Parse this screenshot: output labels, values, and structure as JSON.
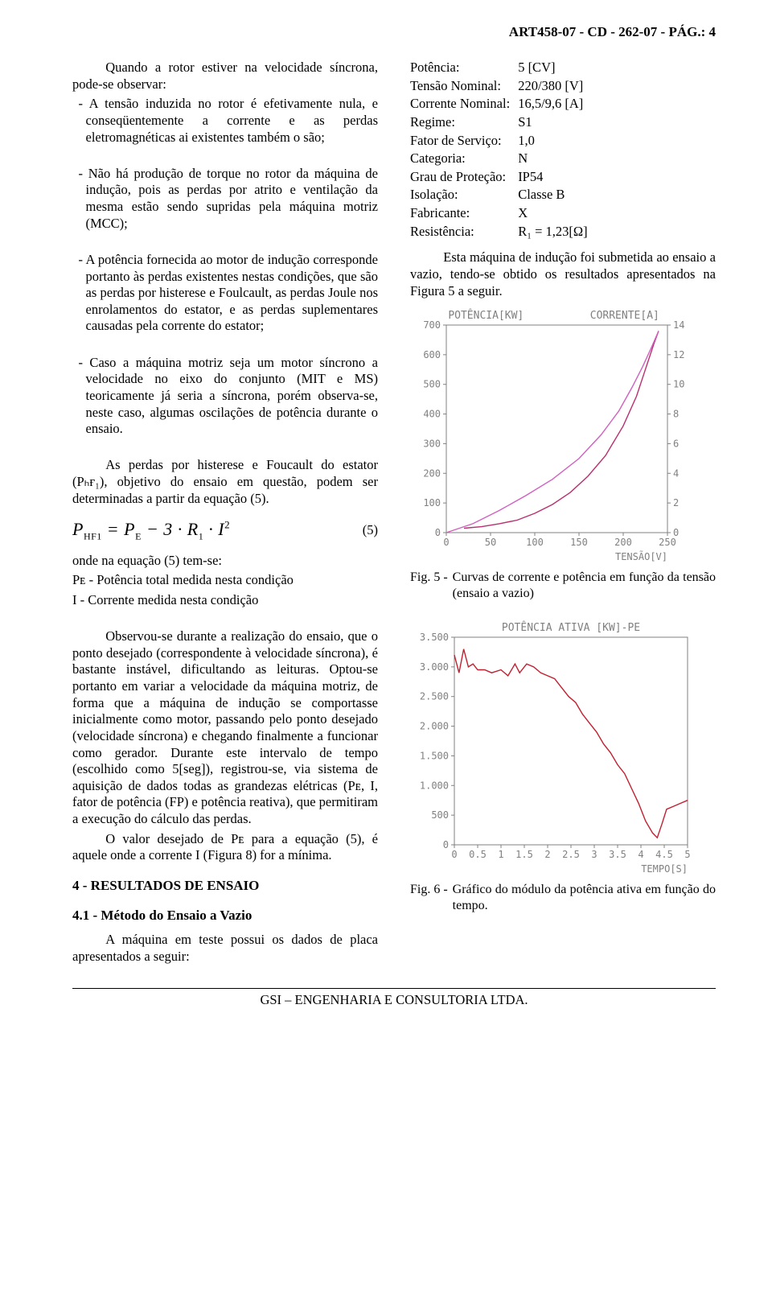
{
  "header": "ART458-07 - CD - 262-07 - PÁG.: 4",
  "footer": "GSI – ENGENHARIA E CONSULTORIA LTDA.",
  "left": {
    "p1_intro": "Quando a rotor estiver na velocidade síncrona, pode-se observar:",
    "b1": "- A tensão induzida no rotor é efetivamente nula, e conseqüentemente a corrente e as perdas eletromagnéticas ai existentes também o são;",
    "b2": "- Não há produção de torque no rotor da máquina de indução, pois as perdas por atrito e ventilação da mesma estão sendo supridas pela máquina motriz (MCC);",
    "b3": "- A potência fornecida ao motor de indução corresponde portanto às perdas existentes nestas condições, que são as perdas por histerese e Foulcault, as perdas Joule nos enrolamentos do estator, e as perdas suplementares causadas pela corrente do estator;",
    "b4": "- Caso a máquina motriz seja um motor síncrono a velocidade no eixo do conjunto (MIT e MS) teoricamente já seria a síncrona, porém observa-se, neste caso, algumas oscilações de potência durante o ensaio.",
    "p2": "As perdas por histerese e Foucault do estator (Pₕғ₁), objetivo do ensaio em questão, podem ser determinadas a partir da equação (5).",
    "eq_num": "(5)",
    "p3": "onde na equação (5) tem-se:",
    "p3a": "Pᴇ - Potência total medida nesta condição",
    "p3b": "I - Corrente medida nesta condição",
    "p4": "Observou-se durante a realização do ensaio, que o ponto desejado (correspondente à velocidade síncrona), é bastante instável, dificultando as leituras. Optou-se portanto em variar a velocidade da máquina motriz, de forma que a máquina de indução se comportasse inicialmente como motor, passando pelo ponto desejado (velocidade síncrona) e chegando finalmente a funcionar como gerador. Durante este intervalo de tempo (escolhido como 5[seg]), registrou-se, via sistema de aquisição de dados todas as grandezas elétricas (Pᴇ, I, fator de potência (FP) e potência reativa), que permitiram a execução do cálculo das perdas.",
    "p5": "O valor desejado de Pᴇ para a equação (5), é aquele onde a corrente I (Figura 8) for a mínima.",
    "h4": "4 - RESULTADOS DE ENSAIO",
    "h41": "4.1 - Método do Ensaio a Vazio",
    "p6": "A máquina em teste possui os dados de placa apresentados a seguir:"
  },
  "specs": [
    {
      "label": "Potência:",
      "value": "5 [CV]"
    },
    {
      "label": "Tensão Nominal:",
      "value": "220/380 [V]"
    },
    {
      "label": "Corrente Nominal:",
      "value": "16,5/9,6 [A]"
    },
    {
      "label": "Regime:",
      "value": "S1"
    },
    {
      "label": "Fator de Serviço:",
      "value": "1,0"
    },
    {
      "label": "Categoria:",
      "value": "N"
    },
    {
      "label": "Grau de Proteção:",
      "value": "IP54"
    },
    {
      "label": "Isolação:",
      "value": "Classe B"
    },
    {
      "label": "Fabricante:",
      "value": "X"
    },
    {
      "label": "Resistência:",
      "value": "R₁ = 1,23[Ω]"
    }
  ],
  "right_p1": "Esta máquina de indução foi submetida ao ensaio a vazio, tendo-se obtido os resultados apresentados na Figura 5 a seguir.",
  "fig5": {
    "caption_label": "Fig. 5 -",
    "caption": "Curvas de corrente e potência em função da tensão (ensaio a vazio)",
    "type": "dual-axis-line",
    "title_left": "POTÊNCIA[KW]",
    "title_right": "CORRENTE[A]",
    "xlabel": "TENSÃO[V]",
    "xlim": [
      0,
      250
    ],
    "xticks": [
      0,
      50,
      100,
      150,
      200,
      250
    ],
    "ylim_left": [
      0,
      700
    ],
    "yticks_left": [
      0,
      100,
      200,
      300,
      400,
      500,
      600,
      700
    ],
    "ylim_right": [
      0,
      14
    ],
    "yticks_right": [
      0,
      2,
      4,
      6,
      8,
      10,
      12,
      14
    ],
    "series_potencia": {
      "points": [
        [
          20,
          15
        ],
        [
          40,
          20
        ],
        [
          60,
          30
        ],
        [
          80,
          42
        ],
        [
          100,
          65
        ],
        [
          120,
          95
        ],
        [
          140,
          135
        ],
        [
          160,
          190
        ],
        [
          180,
          260
        ],
        [
          200,
          360
        ],
        [
          215,
          460
        ],
        [
          225,
          550
        ],
        [
          235,
          640
        ],
        [
          240,
          680
        ]
      ],
      "color": "#b83070",
      "width": 1.4
    },
    "series_corrente": {
      "points": [
        [
          0,
          0
        ],
        [
          30,
          0.6
        ],
        [
          60,
          1.5
        ],
        [
          90,
          2.5
        ],
        [
          120,
          3.6
        ],
        [
          150,
          5.0
        ],
        [
          175,
          6.6
        ],
        [
          195,
          8.2
        ],
        [
          210,
          9.8
        ],
        [
          222,
          11.2
        ],
        [
          232,
          12.5
        ],
        [
          240,
          13.6
        ]
      ],
      "color": "#d060c0",
      "width": 1.4
    },
    "axis_color": "#808080",
    "background": "#ffffff"
  },
  "fig6": {
    "caption_label": "Fig. 6 -",
    "caption": "Gráfico do módulo da potência ativa em função do tempo.",
    "type": "line",
    "title": "POTÊNCIA ATIVA [KW]-PE",
    "xlabel": "TEMPO[S]",
    "xlim": [
      0,
      5
    ],
    "xticks": [
      0,
      0.5,
      1,
      1.5,
      2,
      2.5,
      3,
      3.5,
      4,
      4.5,
      5
    ],
    "ylim": [
      0,
      3500
    ],
    "yticks": [
      0,
      500,
      1000,
      1500,
      2000,
      2500,
      3000,
      3500
    ],
    "yticks_labels": [
      "0",
      "500",
      "1.000",
      "1.500",
      "2.000",
      "2.500",
      "3.000",
      "3.500"
    ],
    "series": {
      "points": [
        [
          0,
          3200
        ],
        [
          0.1,
          2900
        ],
        [
          0.2,
          3300
        ],
        [
          0.3,
          3000
        ],
        [
          0.4,
          3050
        ],
        [
          0.5,
          2950
        ],
        [
          0.65,
          2950
        ],
        [
          0.8,
          2900
        ],
        [
          1.0,
          2950
        ],
        [
          1.15,
          2850
        ],
        [
          1.3,
          3050
        ],
        [
          1.4,
          2900
        ],
        [
          1.55,
          3050
        ],
        [
          1.7,
          3000
        ],
        [
          1.85,
          2900
        ],
        [
          2.0,
          2850
        ],
        [
          2.15,
          2800
        ],
        [
          2.3,
          2650
        ],
        [
          2.45,
          2500
        ],
        [
          2.6,
          2400
        ],
        [
          2.75,
          2200
        ],
        [
          2.9,
          2050
        ],
        [
          3.05,
          1900
        ],
        [
          3.2,
          1700
        ],
        [
          3.35,
          1550
        ],
        [
          3.5,
          1350
        ],
        [
          3.65,
          1200
        ],
        [
          3.8,
          950
        ],
        [
          3.95,
          700
        ],
        [
          4.1,
          400
        ],
        [
          4.25,
          200
        ],
        [
          4.35,
          120
        ],
        [
          4.45,
          350
        ],
        [
          4.55,
          600
        ],
        [
          4.7,
          650
        ],
        [
          4.85,
          700
        ],
        [
          5.0,
          750
        ]
      ],
      "color": "#c02030",
      "width": 1.4
    },
    "axis_color": "#808080",
    "background": "#ffffff"
  }
}
